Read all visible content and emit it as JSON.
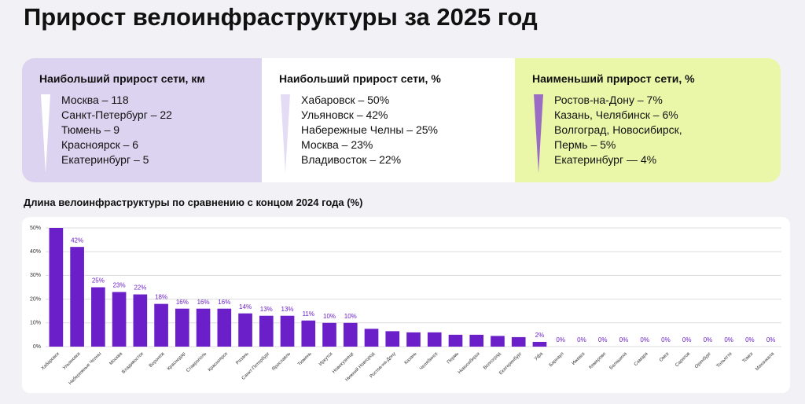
{
  "header": {
    "title": "Прирост велоинфраструктуры за 2025 год"
  },
  "cards": [
    {
      "title": "Наибольший прирост сети, км",
      "items": [
        "Москва – 118",
        "Санкт-Петербург – 22",
        "Тюмень – 9",
        "Красноярск – 6",
        "Екатеринбург – 5"
      ]
    },
    {
      "title": "Наибольший прирост сети, %",
      "items": [
        "Хабаровск – 50%",
        "Ульяновск – 42%",
        "Набережные Челны – 25%",
        "Москва – 23%",
        "Владивосток – 22%"
      ]
    },
    {
      "title": "Наименьший прирост сети, %",
      "items": [
        "Ростов-на-Дону – 7%",
        "Казань, Челябинск – 6%",
        "Волгоград, Новосибирск, Пермь – 5%",
        "Екатеринбург — 4%"
      ]
    }
  ],
  "chart_data": {
    "type": "bar",
    "title": "Длина велоинфраструктуры по сравнению с концом 2024 года (%)",
    "categories": [
      "Хабаровск",
      "Ульяновск",
      "Набережные Челны",
      "Москва",
      "Владивосток",
      "Воронеж",
      "Краснодар",
      "Ставрополь",
      "Красноярск",
      "Рязань",
      "Санкт-Петербург",
      "Ярославль",
      "Тюмень",
      "Иркутск",
      "Новокузнецк",
      "Нижний Новгород",
      "Ростов-на-Дону",
      "Казань",
      "Челябинск",
      "Пермь",
      "Новосибирск",
      "Волгоград",
      "Екатеринбург",
      "Уфа",
      "Барнаул",
      "Ижевск",
      "Кемерово",
      "Балашиха",
      "Самара",
      "Омск",
      "Саратов",
      "Оренбург",
      "Тольятти",
      "Томск",
      "Махачкала"
    ],
    "values": [
      50,
      42,
      25,
      23,
      22,
      18,
      16,
      16,
      16,
      14,
      13,
      13,
      11,
      10,
      10,
      7.5,
      6.5,
      6,
      6,
      5,
      5,
      4.5,
      4,
      2,
      0,
      0,
      0,
      0,
      0,
      0,
      0,
      0,
      0,
      0,
      0
    ],
    "value_labels": [
      null,
      "42%",
      "25%",
      "23%",
      "22%",
      "18%",
      "16%",
      "16%",
      "16%",
      "14%",
      "13%",
      "13%",
      "11%",
      "10%",
      "10%",
      null,
      null,
      null,
      null,
      null,
      null,
      null,
      null,
      "2%",
      "0%",
      "0%",
      "0%",
      "0%",
      "0%",
      "0%",
      "0%",
      "0%",
      "0%",
      "0%",
      "0%"
    ],
    "color": "#6a1fc9",
    "ylim": [
      0,
      50
    ],
    "yticks": [
      {
        "value": 0,
        "label": "0%"
      },
      {
        "value": 10,
        "label": "10%"
      },
      {
        "value": 20,
        "label": "20%"
      },
      {
        "value": 30,
        "label": "30%"
      },
      {
        "value": 40,
        "label": "40%"
      },
      {
        "value": 50,
        "label": "50%"
      }
    ],
    "grid": true
  }
}
